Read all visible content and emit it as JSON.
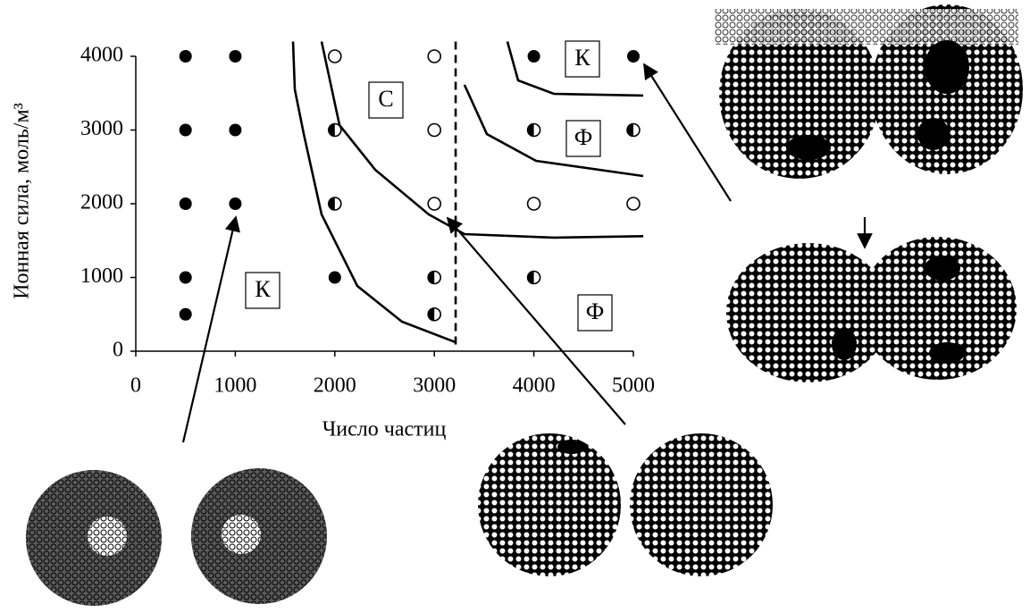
{
  "chart_data": {
    "type": "scatter",
    "x_label": "Число частиц",
    "y_label": "Ионная сила, моль/м³",
    "xlim": [
      0,
      5000
    ],
    "ylim": [
      0,
      4000
    ],
    "xticks": [
      0,
      1000,
      2000,
      3000,
      4000,
      5000
    ],
    "yticks": [
      0,
      1000,
      2000,
      3000,
      4000
    ],
    "series": [
      {
        "marker": "filled",
        "color": "#000000",
        "x": [
          500,
          1000,
          500,
          1000,
          500,
          1000,
          500,
          500,
          2000,
          4000,
          5000
        ],
        "y": [
          4000,
          4000,
          3000,
          3000,
          2000,
          2000,
          1000,
          500,
          1000,
          4000,
          4000
        ]
      },
      {
        "marker": "open",
        "color": "#000000",
        "x": [
          2000,
          3000,
          3000,
          3000,
          4000,
          5000
        ],
        "y": [
          4000,
          4000,
          3000,
          2000,
          2000,
          2000
        ]
      },
      {
        "marker": "half",
        "color": "#000000",
        "x": [
          2000,
          2000,
          3000,
          3000,
          4000,
          5000,
          4000
        ],
        "y": [
          3000,
          2000,
          1000,
          500,
          3000,
          3000,
          1000
        ]
      }
    ],
    "boundaries": [
      {
        "dashed": false,
        "x": [
          1580,
          1598,
          1688,
          1867,
          2226,
          2675,
          3214
        ],
        "y": [
          4200,
          3550,
          2945,
          1855,
          885,
          400,
          121
        ]
      },
      {
        "dashed": false,
        "x": [
          1867,
          2047,
          2406,
          2944,
          3303,
          4200,
          5100
        ],
        "y": [
          4200,
          3067,
          2461,
          1855,
          1588,
          1540,
          1560
        ]
      },
      {
        "dashed": true,
        "x": [
          3214,
          3214
        ],
        "y": [
          4200,
          40
        ]
      },
      {
        "dashed": false,
        "x": [
          3303,
          3528,
          4022,
          5099
        ],
        "y": [
          3612,
          2945,
          2582,
          2376
        ]
      },
      {
        "dashed": false,
        "x": [
          3734,
          3842,
          4201,
          5099
        ],
        "y": [
          4200,
          3673,
          3491,
          3467
        ]
      }
    ],
    "annotations": [
      "С",
      "К",
      "Ф",
      "К",
      "Ф"
    ]
  }
}
